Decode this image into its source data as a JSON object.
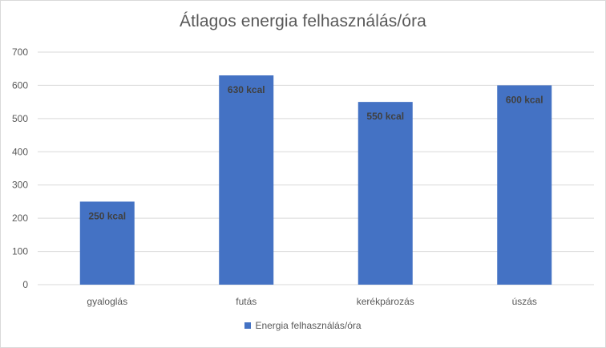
{
  "chart_data": {
    "type": "bar",
    "title": "Átlagos energia felhasználás/óra",
    "xlabel": "",
    "ylabel": "",
    "categories": [
      "gyaloglás",
      "futás",
      "kerékpározás",
      "úszás"
    ],
    "series": [
      {
        "name": "Energia felhasználás/óra",
        "values": [
          250,
          630,
          550,
          600
        ],
        "data_labels": [
          "250 kcal",
          "630 kcal",
          "550 kcal",
          "600 kcal"
        ]
      }
    ],
    "ylim": [
      0,
      700
    ],
    "yticks": [
      "0",
      "100",
      "200",
      "300",
      "400",
      "500",
      "600",
      "700"
    ],
    "grid": true,
    "legend_position": "bottom",
    "colors": {
      "bar": "#4472c4",
      "grid": "#d9d9d9",
      "text": "#595959",
      "data_label": "#404040"
    }
  }
}
